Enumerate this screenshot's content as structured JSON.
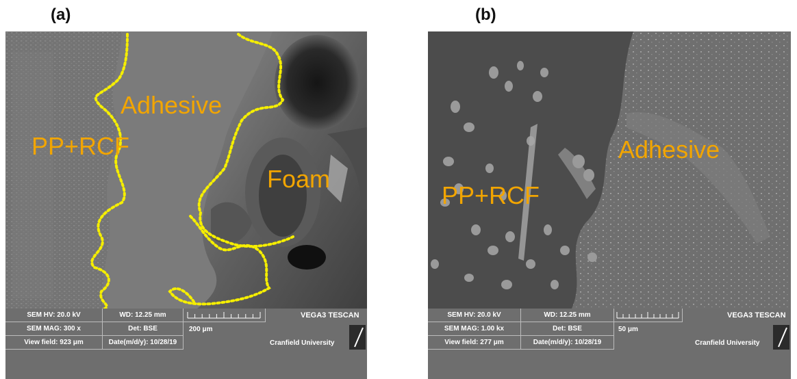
{
  "figure": {
    "panel_a": {
      "label": "(a)",
      "regions": {
        "adhesive": "Adhesive",
        "substrate": "PP+RCF",
        "foam": "Foam"
      },
      "info": {
        "hv": "SEM HV: 20.0 kV",
        "wd": "WD: 12.25 mm",
        "brand": "VEGA3 TESCAN",
        "mag": "SEM MAG: 300 x",
        "det": "Det: BSE",
        "scale": "200 μm",
        "view_field": "View field: 923 μm",
        "date": "Date(m/d/y): 10/28/19",
        "institution": "Cranfield University"
      }
    },
    "panel_b": {
      "label": "(b)",
      "regions": {
        "substrate": "PP+RCF",
        "adhesive": "Adhesive"
      },
      "info": {
        "hv": "SEM HV: 20.0 kV",
        "wd": "WD: 12.25 mm",
        "brand": "VEGA3 TESCAN",
        "mag": "SEM MAG: 1.00 kx",
        "det": "Det: BSE",
        "scale": "50 μm",
        "view_field": "View field: 277 μm",
        "date": "Date(m/d/y): 10/28/19",
        "institution": "Cranfield University"
      }
    },
    "colors": {
      "annotation": "#f2a500",
      "boundary": "#f5ee00",
      "info_bar": "#6e6e6e"
    }
  }
}
